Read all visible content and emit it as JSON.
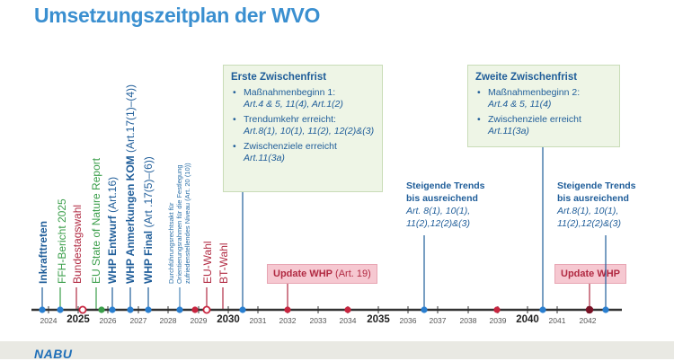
{
  "title": "Umsetzungszeitplan der WVO",
  "events": [
    {
      "pre": "",
      "label": "Inkrafttreten",
      "post": "",
      "color": "#1f5d99",
      "bold": true
    },
    {
      "pre": "",
      "label": "FFH-Bericht 2025",
      "post": "",
      "color": "#3a9e4a",
      "bold": false
    },
    {
      "pre": "",
      "label": "Bundestagswahl",
      "post": "",
      "color": "#b12a42",
      "bold": false
    },
    {
      "pre": "",
      "label": "EU State of Nature Report",
      "post": "",
      "color": "#3a9e4a",
      "bold": false
    },
    {
      "pre": "WHP Entwurf",
      "label": "",
      "post": " (Art.16)",
      "color": "#1f5d99",
      "bold": false
    },
    {
      "pre": "WHP Anmerkungen KOM",
      "label": "",
      "post": " (Art.17(1)–(4))",
      "color": "#1f5d99",
      "bold": false
    },
    {
      "pre": "WHP Final",
      "label": "",
      "post": " (Art .17(5)–(6))",
      "color": "#1f5d99",
      "bold": false
    },
    {
      "pre": "",
      "label": "EU-Wahl",
      "post": "",
      "color": "#b12a42",
      "bold": false
    },
    {
      "pre": "",
      "label": "BT-Wahl",
      "post": "",
      "color": "#b12a42",
      "bold": false
    }
  ],
  "implementing_act": [
    "Durchführungsrechtsakt für",
    "Orientierungsrahmen für die Festlegung",
    "zufriedenstellendes Niveau (Art. 20 (10))"
  ],
  "boxes": [
    {
      "title": "Erste Zwischenfrist",
      "items": [
        {
          "text": "Maßnahmenbeginn 1:",
          "sub": "Art.4 & 5, 11(4), Art.1(2)"
        },
        {
          "text": "Trendumkehr erreicht:",
          "sub": "Art.8(1), 10(1), 11(2), 12(2)&(3)"
        },
        {
          "text": "Zwischenziele erreicht",
          "sub": "Art.11(3a)"
        }
      ]
    },
    {
      "title": "Zweite Zwischenfrist",
      "items": [
        {
          "text": "Maßnahmenbeginn 2:",
          "sub": "Art.4 & 5, 11(4)"
        },
        {
          "text": "Zwischenziele erreicht",
          "sub": "Art.11(3a)"
        }
      ]
    }
  ],
  "trends": [
    {
      "line1": "Steigende Trends",
      "line2": "bis ausreichend",
      "sub1": "Art. 8(1), 10(1),",
      "sub2": "11(2),12(2)&(3)"
    },
    {
      "line1": "Steigende Trends",
      "line2": "bis ausreichend",
      "sub1": "Art.8(1), 10(1),",
      "sub2": "11(2),12(2)&(3)"
    }
  ],
  "updates": [
    {
      "label": "Update WHP",
      "note": " (Art. 19)"
    },
    {
      "label": "Update WHP",
      "note": ""
    }
  ],
  "years": [
    2024,
    2025,
    2026,
    2027,
    2028,
    2029,
    2030,
    2031,
    2032,
    2033,
    2034,
    2035,
    2036,
    2037,
    2038,
    2039,
    2040,
    2041,
    2042
  ],
  "bold_years": [
    2025,
    2030,
    2035,
    2040
  ],
  "bullet": "•",
  "logo": "NABU",
  "colors": {
    "blue": "#1f5d99",
    "green": "#3a9e4a",
    "red": "#b12a42",
    "accent": "#3a8fd0",
    "dot_blue": "#2a7fd0",
    "dot_red": "#c8253f",
    "dot_darkred": "#7a1226"
  }
}
